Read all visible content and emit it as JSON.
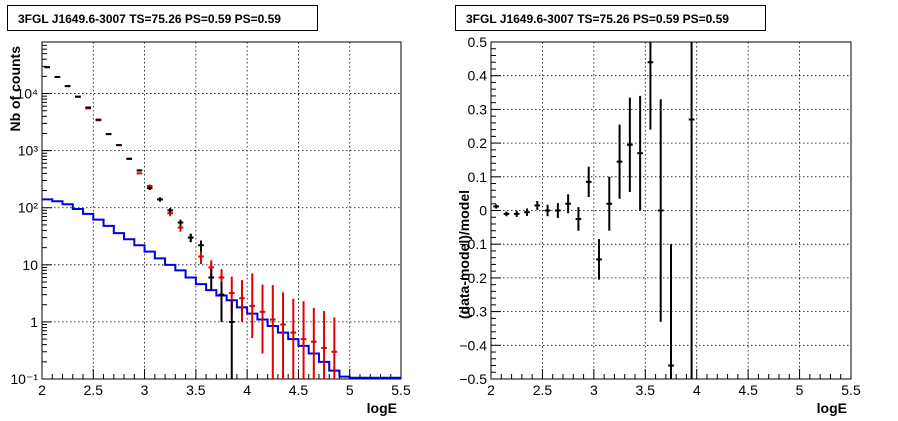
{
  "chart_data": [
    {
      "type": "histogram",
      "title": "3FGL J1649.6-3007 TS=75.26 PS=0.59 PS=0.59",
      "xlabel": "logE",
      "ylabel": "Nb of counts",
      "xlim": [
        2,
        5.5
      ],
      "ylim": [
        0.1,
        80000
      ],
      "yscale": "log",
      "grid": true,
      "xticks": [
        "2",
        "2.5",
        "3",
        "3.5",
        "4",
        "4.5",
        "5",
        "5.5"
      ],
      "yticks": [
        {
          "value": 0.1,
          "label": "10⁻¹"
        },
        {
          "value": 1,
          "label": "1"
        },
        {
          "value": 10,
          "label": "10"
        },
        {
          "value": 100,
          "label": "10²"
        },
        {
          "value": 1000,
          "label": "10³"
        },
        {
          "value": 10000,
          "label": "10⁴"
        }
      ],
      "bin_edges": [
        2,
        2.1,
        2.2,
        2.3,
        2.4,
        2.5,
        2.6,
        2.7,
        2.8,
        2.9,
        3.0,
        3.1,
        3.2,
        3.3,
        3.4,
        3.5,
        3.6,
        3.7,
        3.8,
        3.9,
        4.0,
        4.1,
        4.2,
        4.3,
        4.4,
        4.5,
        4.6,
        4.7,
        4.8,
        4.9,
        5.0
      ],
      "series": [
        {
          "role": "data",
          "color": "#000000",
          "x": [
            2.05,
            2.15,
            2.25,
            2.35,
            2.45,
            2.55,
            2.65,
            2.75,
            2.85,
            2.95,
            3.05,
            3.15,
            3.25,
            3.35,
            3.45,
            3.55,
            3.65,
            3.75,
            3.85
          ],
          "y": [
            29000,
            19500,
            13500,
            8800,
            5700,
            3500,
            1950,
            1250,
            720,
            450,
            220,
            140,
            90,
            55,
            30,
            22,
            6,
            3,
            1
          ],
          "yerr_low": [
            170,
            140,
            116,
            94,
            75,
            59,
            44,
            35,
            27,
            21,
            15,
            12,
            9,
            7,
            5,
            4.7,
            2.4,
            2.0,
            0.95
          ],
          "yerr_high": [
            170,
            140,
            116,
            94,
            75,
            59,
            44,
            35,
            27,
            21,
            15,
            12,
            9,
            7,
            5,
            4.7,
            2.4,
            2.0,
            1.4
          ]
        },
        {
          "role": "model-total",
          "color": "#e00000",
          "x": [
            2.05,
            2.15,
            2.25,
            2.35,
            2.45,
            2.55,
            2.65,
            2.75,
            2.85,
            2.95,
            3.05,
            3.15,
            3.25,
            3.35,
            3.45,
            3.55,
            3.65,
            3.75,
            3.85,
            3.95,
            4.05,
            4.15,
            4.25,
            4.35,
            4.45,
            4.55,
            4.65,
            4.75,
            4.85
          ],
          "y": [
            29000,
            19500,
            13500,
            8800,
            5500,
            3400,
            1950,
            1250,
            720,
            400,
            240,
            140,
            80,
            45,
            30,
            14,
            9,
            6,
            3.2,
            2.6,
            1.9,
            1.5,
            1.1,
            0.9,
            0.65,
            0.5,
            0.45,
            0.35,
            0.3
          ],
          "yerr_low": [
            0,
            0,
            0,
            0,
            0,
            0,
            0,
            0,
            0,
            0,
            15,
            12,
            9,
            7,
            5,
            3.7,
            3,
            2.4,
            1.8,
            1.6,
            1.38,
            1.22,
            1.0,
            0.85,
            0.63,
            0.49,
            0.44,
            0.34,
            0.29
          ],
          "yerr_high": [
            0,
            0,
            0,
            0,
            0,
            0,
            0,
            0,
            0,
            0,
            15,
            12,
            9,
            7,
            5,
            3.7,
            3,
            2.4,
            3.0,
            2.8,
            5.2,
            3.0,
            3.3,
            2.4,
            1.9,
            1.8,
            1.3,
            1.2,
            0.9
          ]
        },
        {
          "role": "model-source",
          "color": "#0000e0",
          "draw": "step",
          "y": [
            140,
            130,
            115,
            95,
            78,
            62,
            48,
            36,
            28,
            22,
            17,
            13,
            10,
            8,
            6,
            4.6,
            3.6,
            2.9,
            2.4,
            1.8,
            1.4,
            1.1,
            0.85,
            0.65,
            0.5,
            0.38,
            0.28,
            0.2,
            0.14,
            0.11
          ],
          "tail_to": 5.5,
          "tail_y": 0.105
        }
      ]
    },
    {
      "type": "errorbar",
      "title": "3FGL J1649.6-3007 TS=75.26 PS=0.59 PS=0.59",
      "xlabel": "logE",
      "ylabel": "(data-model)/model",
      "xlim": [
        2,
        5.5
      ],
      "ylim": [
        -0.5,
        0.5
      ],
      "grid": true,
      "xticks": [
        "2",
        "2.5",
        "3",
        "3.5",
        "4",
        "4.5",
        "5",
        "5.5"
      ],
      "yticks": [
        "−0.5",
        "−0.4",
        "−0.3",
        "−0.2",
        "−0.1",
        "0",
        "0.1",
        "0.2",
        "0.3",
        "0.4",
        "0.5"
      ],
      "series": [
        {
          "role": "residual",
          "color": "#000000",
          "x": [
            2.05,
            2.15,
            2.25,
            2.35,
            2.45,
            2.55,
            2.65,
            2.75,
            2.85,
            2.95,
            3.05,
            3.15,
            3.25,
            3.35,
            3.45,
            3.55,
            3.65,
            3.75,
            3.95
          ],
          "y": [
            0.012,
            -0.01,
            -0.01,
            -0.005,
            0.015,
            0.0,
            0.0,
            0.02,
            -0.025,
            0.085,
            -0.145,
            0.02,
            0.145,
            0.195,
            0.17,
            0.44,
            0.0,
            -0.46,
            0.27
          ],
          "yerr_low": [
            0.006,
            0.007,
            0.009,
            0.011,
            0.013,
            0.017,
            0.022,
            0.028,
            0.035,
            0.045,
            0.06,
            0.08,
            0.11,
            0.14,
            0.17,
            0.2,
            0.33,
            0.04,
            0.77
          ],
          "yerr_high": [
            0.006,
            0.007,
            0.009,
            0.011,
            0.013,
            0.017,
            0.022,
            0.028,
            0.035,
            0.045,
            0.06,
            0.08,
            0.11,
            0.14,
            0.17,
            0.06,
            0.33,
            0.36,
            0.23
          ]
        }
      ]
    }
  ]
}
